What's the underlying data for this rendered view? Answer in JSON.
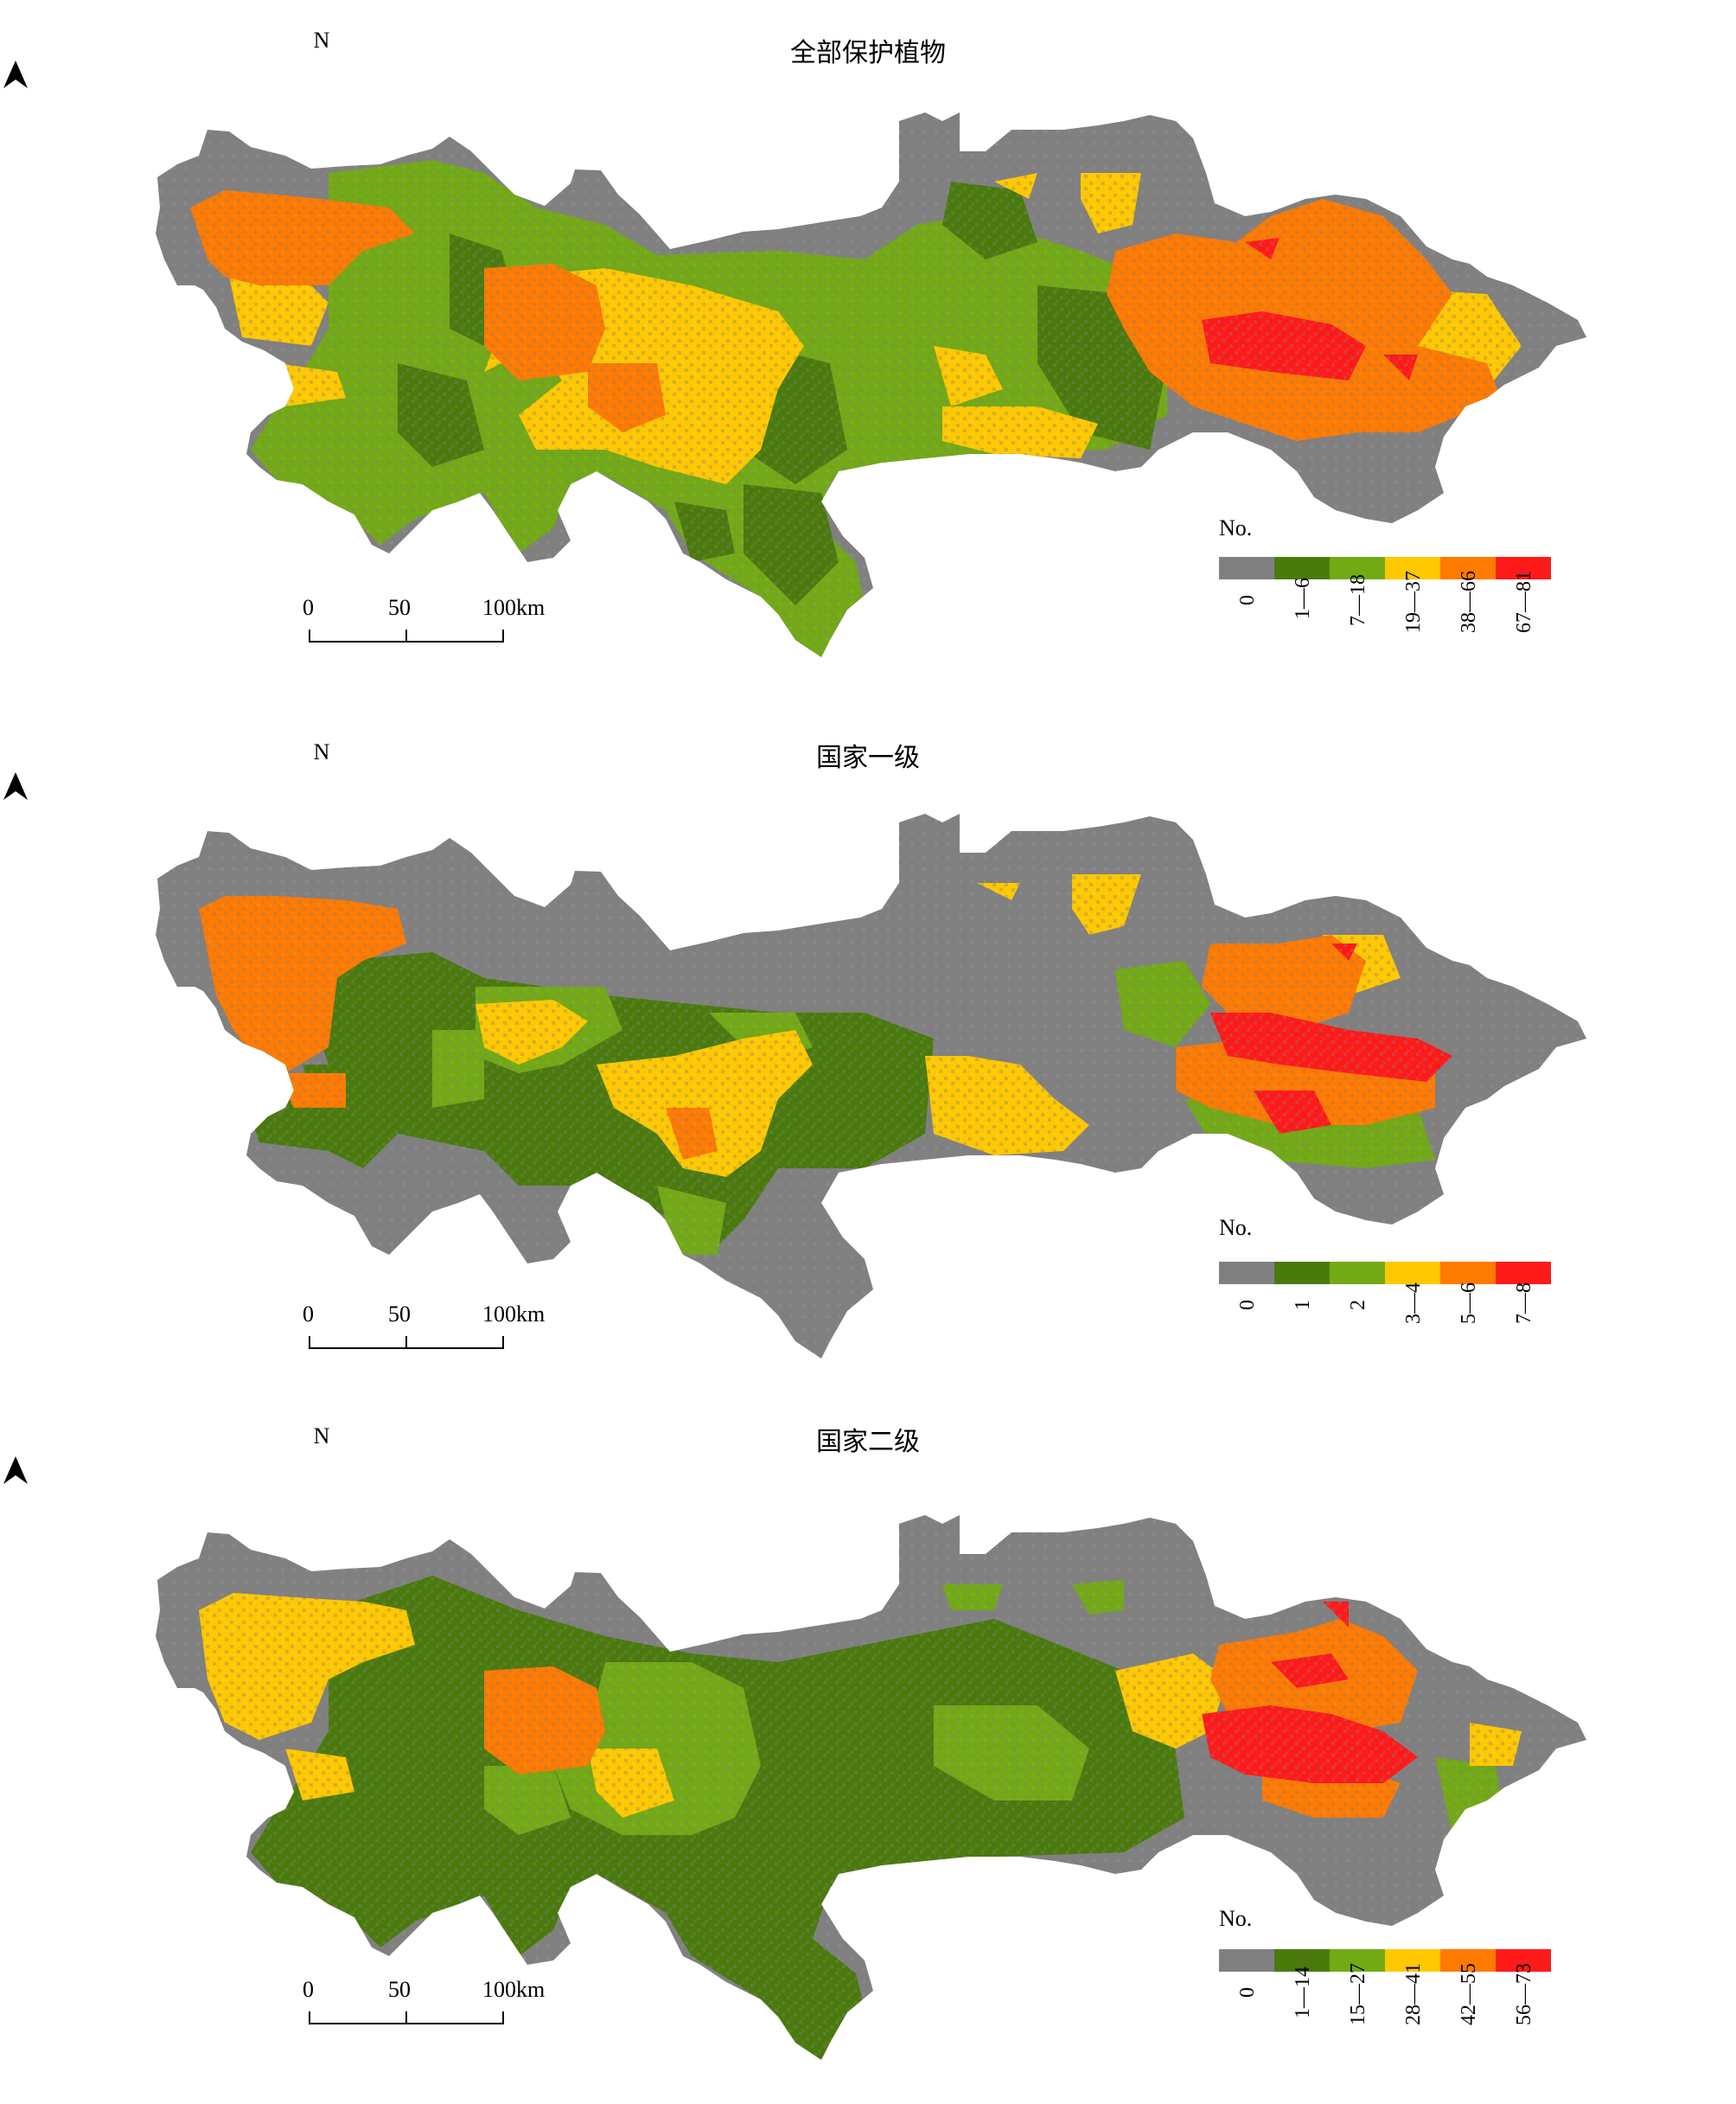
{
  "colors": {
    "background": "#808080",
    "class_1": "#4a7a0c",
    "class_2": "#72aa14",
    "class_3": "#ffc800",
    "class_4": "#ff7a00",
    "class_5": "#ff1a1a"
  },
  "north_label": "N",
  "scale_bar": {
    "labels": [
      "0",
      "50",
      "100km"
    ]
  },
  "legend_title": "No.",
  "panels": [
    {
      "title": "全部保护植物",
      "legend_labels": [
        "0",
        "1—6",
        "7—18",
        "19—37",
        "38—66",
        "67—81"
      ]
    },
    {
      "title": "国家一级",
      "legend_labels": [
        "0",
        "1",
        "2",
        "3—4",
        "5—6",
        "7—8"
      ]
    },
    {
      "title": "国家二级",
      "legend_labels": [
        "0",
        "1—14",
        "15—27",
        "28—41",
        "42—55",
        "56—73"
      ]
    }
  ]
}
